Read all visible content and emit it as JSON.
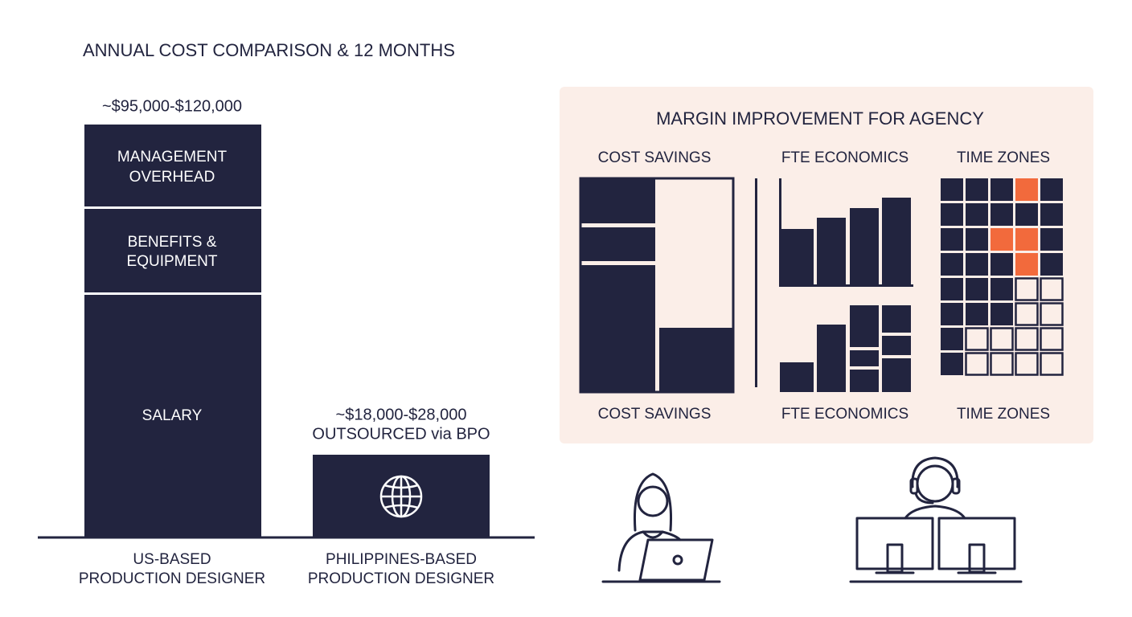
{
  "title": "ANNUAL COST COMPARISON & 12 MONTHS",
  "bars": [
    {
      "value_label": [
        "~$95,000-$120,000"
      ],
      "segments": [
        [
          "MANAGEMENT",
          "OVERHEAD"
        ],
        [
          "BENEFITS &",
          "EQUIPMENT"
        ],
        [
          "SALARY"
        ]
      ],
      "category": [
        "US-BASED",
        "PRODUCTION DESIGNER"
      ]
    },
    {
      "value_label": [
        "~$18,000-$28,000",
        "OUTSOURCED via BPO"
      ],
      "segments": [],
      "category": [
        "PHILIPPINES-BASED",
        "PRODUCTION DESIGNER"
      ]
    }
  ],
  "panel": {
    "title": "MARGIN IMPROVEMENT FOR AGENCY",
    "headings": [
      "COST SAVINGS",
      "FTE ECONOMICS",
      "TIME ZONES"
    ],
    "footers": [
      "COST SAVINGS",
      "FTE ECONOMICS",
      "TIME ZONES"
    ]
  }
}
